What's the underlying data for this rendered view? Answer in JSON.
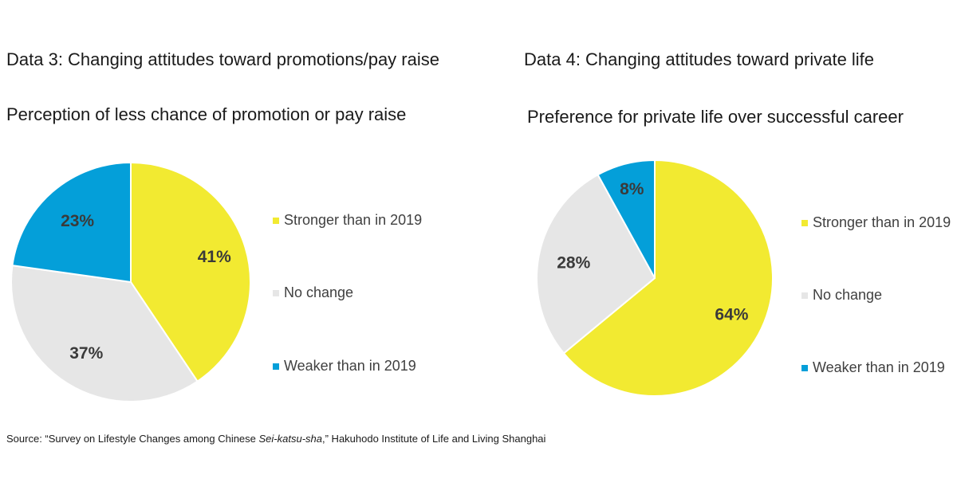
{
  "left": {
    "panel_title": "Data 3: Changing attitudes toward promotions/pay raise",
    "chart_title": "Perception of less chance of promotion or pay raise"
  },
  "right": {
    "panel_title": "Data 4: Changing attitudes toward private life",
    "chart_title": "Preference for private life over successful career"
  },
  "legend": [
    {
      "label": "Stronger than in 2019",
      "color": "#f2ea31"
    },
    {
      "label": "No change",
      "color": "#e6e6e6"
    },
    {
      "label": "Weaker than in 2019",
      "color": "#049fd9"
    }
  ],
  "chart_data": [
    {
      "type": "pie",
      "title": "Perception of less chance of promotion or pay raise",
      "categories": [
        "Stronger than in 2019",
        "No change",
        "Weaker than in 2019"
      ],
      "values": [
        41,
        37,
        23
      ],
      "labels": [
        "41%",
        "37%",
        "23%"
      ],
      "colors": [
        "#f2ea31",
        "#e6e6e6",
        "#049fd9"
      ],
      "legend": "right"
    },
    {
      "type": "pie",
      "title": "Preference for private life over successful career",
      "categories": [
        "Stronger than in 2019",
        "No change",
        "Weaker than in 2019"
      ],
      "values": [
        64,
        28,
        8
      ],
      "labels": [
        "64%",
        "28%",
        "8%"
      ],
      "colors": [
        "#f2ea31",
        "#e6e6e6",
        "#049fd9"
      ],
      "legend": "right"
    }
  ],
  "source": {
    "prefix": "Source: “Survey on Lifestyle Changes among Chinese ",
    "italic": "Sei-katsu-sha",
    "suffix": ",” Hakuhodo Institute of Life and Living Shanghai"
  }
}
